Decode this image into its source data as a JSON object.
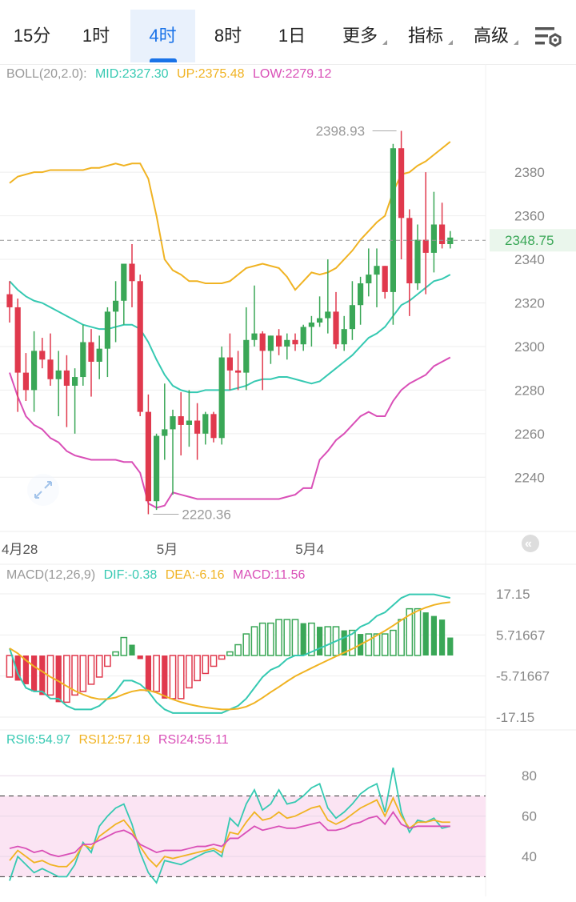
{
  "tabs": [
    {
      "label": "15分",
      "active": false,
      "dropdown": false
    },
    {
      "label": "1时",
      "active": false,
      "dropdown": false
    },
    {
      "label": "4时",
      "active": true,
      "dropdown": false
    },
    {
      "label": "8时",
      "active": false,
      "dropdown": false
    },
    {
      "label": "1日",
      "active": false,
      "dropdown": false
    },
    {
      "label": "更多",
      "active": false,
      "dropdown": true
    },
    {
      "label": "指标",
      "active": false,
      "dropdown": true
    },
    {
      "label": "高级",
      "active": false,
      "dropdown": true
    }
  ],
  "settings_icon": "chart-settings-icon",
  "expand_icon": "collapse-arrows-icon",
  "colors": {
    "up": "#3aa757",
    "down": "#e0394d",
    "mid": "#36c9b2",
    "upper": "#f0b323",
    "lower": "#d94fb7",
    "grid": "#eeeeee",
    "axis": "#888888"
  },
  "chart_data": [
    {
      "type": "candlestick",
      "title": "BOLL(20,2.0)",
      "legend": {
        "mid": "MID:2327.30",
        "up": "UP:2375.48",
        "low": "LOW:2279.12"
      },
      "ylim": [
        2221,
        2401
      ],
      "y_ticks": [
        2380,
        2360,
        2340,
        2320,
        2300,
        2280,
        2260,
        2240
      ],
      "current_price": "2348.75",
      "max_label": "2398.93",
      "min_label": "2220.36",
      "x_labels": [
        {
          "index": 0,
          "text": "4月28"
        },
        {
          "index": 19,
          "text": "5月"
        },
        {
          "index": 36,
          "text": "5月4"
        }
      ],
      "candles": [
        [
          2324,
          2330,
          2311,
          2318
        ],
        [
          2318,
          2322,
          2270,
          2288
        ],
        [
          2288,
          2297,
          2275,
          2280
        ],
        [
          2280,
          2307,
          2270,
          2298
        ],
        [
          2298,
          2304,
          2290,
          2294
        ],
        [
          2294,
          2306,
          2282,
          2285
        ],
        [
          2285,
          2298,
          2268,
          2289
        ],
        [
          2289,
          2296,
          2263,
          2282
        ],
        [
          2282,
          2290,
          2260,
          2286
        ],
        [
          2286,
          2310,
          2282,
          2302
        ],
        [
          2302,
          2308,
          2277,
          2293
        ],
        [
          2293,
          2305,
          2285,
          2299
        ],
        [
          2299,
          2318,
          2286,
          2316
        ],
        [
          2316,
          2330,
          2302,
          2321
        ],
        [
          2321,
          2338,
          2310,
          2338
        ],
        [
          2338,
          2347,
          2318,
          2330
        ],
        [
          2330,
          2333,
          2268,
          2270
        ],
        [
          2270,
          2278,
          2223,
          2229
        ],
        [
          2229,
          2260,
          2225,
          2259
        ],
        [
          2259,
          2283,
          2248,
          2262
        ],
        [
          2262,
          2271,
          2232,
          2268
        ],
        [
          2268,
          2279,
          2250,
          2264
        ],
        [
          2264,
          2280,
          2254,
          2266
        ],
        [
          2266,
          2274,
          2248,
          2260
        ],
        [
          2260,
          2270,
          2255,
          2269
        ],
        [
          2269,
          2270,
          2256,
          2258
        ],
        [
          2258,
          2300,
          2255,
          2295
        ],
        [
          2295,
          2306,
          2280,
          2289
        ],
        [
          2289,
          2298,
          2280,
          2288
        ],
        [
          2288,
          2318,
          2280,
          2303
        ],
        [
          2303,
          2328,
          2300,
          2306
        ],
        [
          2306,
          2307,
          2280,
          2298
        ],
        [
          2298,
          2305,
          2292,
          2305
        ],
        [
          2305,
          2308,
          2296,
          2300
        ],
        [
          2300,
          2306,
          2294,
          2303
        ],
        [
          2303,
          2306,
          2298,
          2301
        ],
        [
          2301,
          2310,
          2298,
          2309
        ],
        [
          2309,
          2314,
          2300,
          2311
        ],
        [
          2311,
          2323,
          2309,
          2313
        ],
        [
          2313,
          2340,
          2306,
          2316
        ],
        [
          2316,
          2325,
          2299,
          2301
        ],
        [
          2301,
          2314,
          2298,
          2308
        ],
        [
          2308,
          2330,
          2303,
          2319
        ],
        [
          2319,
          2332,
          2310,
          2329
        ],
        [
          2329,
          2345,
          2323,
          2333
        ],
        [
          2333,
          2345,
          2318,
          2337
        ],
        [
          2337,
          2337,
          2322,
          2325
        ],
        [
          2325,
          2393,
          2310,
          2391
        ],
        [
          2391,
          2399,
          2340,
          2359
        ],
        [
          2359,
          2363,
          2314,
          2329
        ],
        [
          2329,
          2356,
          2326,
          2349
        ],
        [
          2349,
          2380,
          2324,
          2343
        ],
        [
          2343,
          2371,
          2334,
          2356
        ],
        [
          2356,
          2366,
          2345,
          2347
        ],
        [
          2347,
          2353,
          2345,
          2350
        ]
      ],
      "series": [
        {
          "name": "MID",
          "values": [
            2330,
            2326,
            2323,
            2321,
            2320,
            2318,
            2316,
            2314,
            2312,
            2310,
            2309,
            2308,
            2308,
            2309,
            2310,
            2310,
            2308,
            2302,
            2294,
            2287,
            2282,
            2280,
            2279,
            2279,
            2280,
            2280,
            2280,
            2280,
            2281,
            2282,
            2284,
            2285,
            2285,
            2286,
            2286,
            2285,
            2284,
            2283,
            2284,
            2287,
            2290,
            2293,
            2296,
            2300,
            2304,
            2306,
            2309,
            2314,
            2319,
            2321,
            2324,
            2327,
            2330,
            2331,
            2333
          ]
        },
        {
          "name": "UP",
          "values": [
            2375,
            2378,
            2379,
            2380,
            2380,
            2381,
            2381,
            2381,
            2381,
            2381,
            2382,
            2382,
            2383,
            2384,
            2383,
            2384,
            2384,
            2377,
            2360,
            2340,
            2335,
            2333,
            2330,
            2330,
            2329,
            2329,
            2329,
            2330,
            2333,
            2336,
            2337,
            2338,
            2337,
            2336,
            2332,
            2326,
            2330,
            2334,
            2333,
            2334,
            2336,
            2340,
            2344,
            2349,
            2353,
            2357,
            2360,
            2371,
            2379,
            2380,
            2383,
            2385,
            2388,
            2391,
            2394
          ]
        },
        {
          "name": "LOW",
          "values": [
            2288,
            2277,
            2268,
            2264,
            2262,
            2258,
            2256,
            2252,
            2250,
            2249,
            2248,
            2248,
            2248,
            2248,
            2247,
            2247,
            2242,
            2228,
            2226,
            2227,
            2233,
            2232,
            2231,
            2230,
            2230,
            2230,
            2230,
            2230,
            2230,
            2230,
            2230,
            2230,
            2230,
            2230,
            2231,
            2232,
            2235,
            2235,
            2248,
            2252,
            2257,
            2260,
            2264,
            2268,
            2270,
            2268,
            2268,
            2275,
            2280,
            2283,
            2285,
            2287,
            2291,
            2293,
            2295
          ]
        }
      ]
    },
    {
      "type": "bar",
      "title": "MACD(12,26,9)",
      "legend": {
        "dif": "DIF:-0.38",
        "dea": "DEA:-6.16",
        "macd": "MACD:11.56"
      },
      "ylim": [
        -17.15,
        17.15
      ],
      "y_ticks": [
        "17.15",
        "5.71667",
        "-5.71667",
        "-17.15"
      ],
      "macd": [
        -6,
        -7,
        -8,
        -10,
        -11,
        -11,
        -13,
        -13,
        -11,
        -10,
        -8,
        -6,
        -3,
        1,
        5,
        3,
        -1,
        -10,
        -10,
        -12,
        -12,
        -12,
        -9,
        -7,
        -5,
        -3,
        -1,
        1,
        3,
        6,
        8,
        9,
        9,
        10,
        10,
        10,
        9,
        9,
        8,
        8,
        8,
        7,
        7,
        6,
        6,
        6,
        6,
        7,
        10,
        13,
        13,
        12,
        11,
        10,
        5
      ],
      "dif": [
        2,
        -5,
        -9,
        -10,
        -10,
        -12,
        -12,
        -14,
        -15,
        -15,
        -15,
        -14,
        -12,
        -10,
        -7,
        -7,
        -8,
        -10,
        -13,
        -15,
        -16,
        -16,
        -16,
        -16,
        -16,
        -16,
        -16,
        -15,
        -14,
        -12,
        -9,
        -6,
        -4,
        -3,
        -1,
        0,
        0,
        1,
        2,
        3,
        4,
        5,
        6,
        8,
        9,
        11,
        12,
        14,
        16,
        17,
        17,
        17,
        17,
        16.5,
        16
      ]
    },
    {
      "type": "line",
      "title": "RSI",
      "legend": {
        "rsi6": "RSI6:54.97",
        "rsi12": "RSI12:57.19",
        "rsi24": "RSI24:55.11"
      },
      "ylim": [
        25,
        90
      ],
      "y_ticks": [
        80,
        60,
        40
      ],
      "band": [
        30,
        70
      ],
      "series": [
        {
          "name": "RSI6",
          "values": [
            28,
            40,
            36,
            32,
            34,
            32,
            30,
            30,
            36,
            47,
            42,
            55,
            60,
            64,
            66,
            56,
            42,
            32,
            27,
            38,
            37,
            36,
            38,
            40,
            42,
            43,
            40,
            59,
            55,
            66,
            73,
            63,
            66,
            73,
            66,
            67,
            70,
            74,
            76,
            64,
            59,
            62,
            66,
            71,
            74,
            76,
            62,
            84,
            62,
            52,
            58,
            57,
            59,
            54,
            55
          ]
        },
        {
          "name": "RSI12",
          "values": [
            38,
            43,
            40,
            37,
            38,
            36,
            35,
            35,
            39,
            46,
            44,
            50,
            53,
            56,
            58,
            53,
            45,
            39,
            35,
            40,
            39,
            40,
            41,
            42,
            43,
            44,
            42,
            52,
            51,
            57,
            62,
            58,
            59,
            62,
            59,
            60,
            62,
            64,
            65,
            58,
            56,
            58,
            61,
            64,
            66,
            68,
            60,
            69,
            60,
            54,
            57,
            57,
            58,
            57,
            57
          ]
        },
        {
          "name": "RSI24",
          "values": [
            44,
            45,
            44,
            42,
            43,
            41,
            40,
            41,
            42,
            46,
            46,
            48,
            50,
            52,
            53,
            51,
            46,
            44,
            42,
            43,
            43,
            43,
            44,
            45,
            45,
            46,
            45,
            49,
            49,
            52,
            55,
            53,
            54,
            55,
            54,
            54,
            55,
            56,
            57,
            53,
            53,
            54,
            56,
            57,
            59,
            60,
            56,
            62,
            56,
            54,
            55,
            55,
            55,
            55,
            55
          ]
        }
      ]
    }
  ]
}
